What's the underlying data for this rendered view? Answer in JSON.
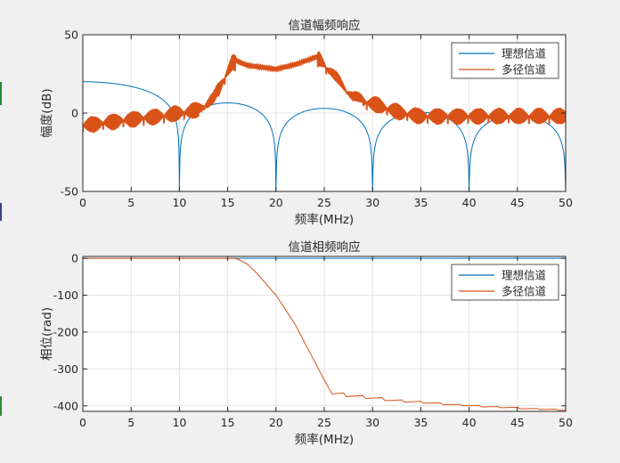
{
  "chart_data": [
    {
      "type": "line",
      "title": "信道幅频响应",
      "xlabel": "频率(MHz)",
      "ylabel": "幅度(dB)",
      "xlim": [
        0,
        50
      ],
      "ylim": [
        -50,
        50
      ],
      "xticks": [
        "0",
        "5",
        "10",
        "15",
        "20",
        "25",
        "30",
        "35",
        "40",
        "45",
        "50"
      ],
      "yticks": [
        "-50",
        "0",
        "50"
      ],
      "grid": true,
      "legend_position": "top-right",
      "series": [
        {
          "name": "理想信道",
          "color": "#0072BD",
          "shape": "sinc_db",
          "value_at_0": 20,
          "nulls_mhz": [
            10,
            20,
            30,
            40,
            50
          ],
          "null_depth": -50,
          "lobe_peaks_db": [
            6.5,
            3,
            0.5,
            -1.5
          ]
        },
        {
          "name": "多径信道",
          "color": "#D95319",
          "shape": "multipath_db",
          "outer_ripple_range_db": [
            -8,
            2
          ],
          "passband_mhz": [
            15.5,
            24.6
          ],
          "passband_edge_peaks_db": [
            34.5,
            36.5
          ],
          "passband_center_db": 28,
          "points": [
            [
              0,
              -6
            ],
            [
              5,
              -2
            ],
            [
              8,
              0
            ],
            [
              10,
              2
            ],
            [
              12,
              4
            ],
            [
              13.5,
              10
            ],
            [
              15.5,
              34.5
            ],
            [
              17,
              30.5
            ],
            [
              20,
              28
            ],
            [
              22,
              31
            ],
            [
              24.5,
              36.5
            ],
            [
              26,
              25
            ],
            [
              28,
              11
            ],
            [
              30,
              8
            ],
            [
              33,
              2
            ],
            [
              35,
              0
            ],
            [
              40,
              0
            ],
            [
              45,
              0
            ],
            [
              50,
              0
            ]
          ]
        }
      ]
    },
    {
      "type": "line",
      "title": "信道相频响应",
      "xlabel": "频率(MHz)",
      "ylabel": "相位(rad)",
      "xlim": [
        0,
        50
      ],
      "ylim": [
        -415,
        5
      ],
      "xticks": [
        "0",
        "5",
        "10",
        "15",
        "20",
        "25",
        "30",
        "35",
        "40",
        "45",
        "50"
      ],
      "yticks": [
        "-400",
        "-300",
        "-200",
        "-100",
        "0"
      ],
      "grid": true,
      "legend_position": "top-right",
      "series": [
        {
          "name": "理想信道",
          "color": "#0072BD",
          "points": [
            [
              0,
              0
            ],
            [
              50,
              0
            ]
          ]
        },
        {
          "name": "多径信道",
          "color": "#D95319",
          "points": [
            [
              0,
              0
            ],
            [
              15.5,
              0
            ],
            [
              16,
              -2
            ],
            [
              17,
              -15
            ],
            [
              18,
              -40
            ],
            [
              19,
              -70
            ],
            [
              20,
              -100
            ],
            [
              21,
              -140
            ],
            [
              22,
              -180
            ],
            [
              23,
              -230
            ],
            [
              24,
              -280
            ],
            [
              25,
              -330
            ],
            [
              25.8,
              -368
            ],
            [
              27,
              -365
            ],
            [
              27.3,
              -375
            ],
            [
              29,
              -372
            ],
            [
              29.3,
              -380
            ],
            [
              31,
              -378
            ],
            [
              31.3,
              -386
            ],
            [
              33,
              -384
            ],
            [
              33.3,
              -390
            ],
            [
              35,
              -388
            ],
            [
              35.3,
              -393
            ],
            [
              37,
              -392
            ],
            [
              37.3,
              -397
            ],
            [
              39,
              -396
            ],
            [
              39.3,
              -400
            ],
            [
              41,
              -399
            ],
            [
              41.3,
              -403
            ],
            [
              43,
              -402
            ],
            [
              43.3,
              -405
            ],
            [
              45,
              -404
            ],
            [
              45.3,
              -408
            ],
            [
              47,
              -407
            ],
            [
              47.3,
              -410
            ],
            [
              49,
              -409
            ],
            [
              49.3,
              -412
            ],
            [
              50,
              -412
            ]
          ]
        }
      ]
    }
  ]
}
